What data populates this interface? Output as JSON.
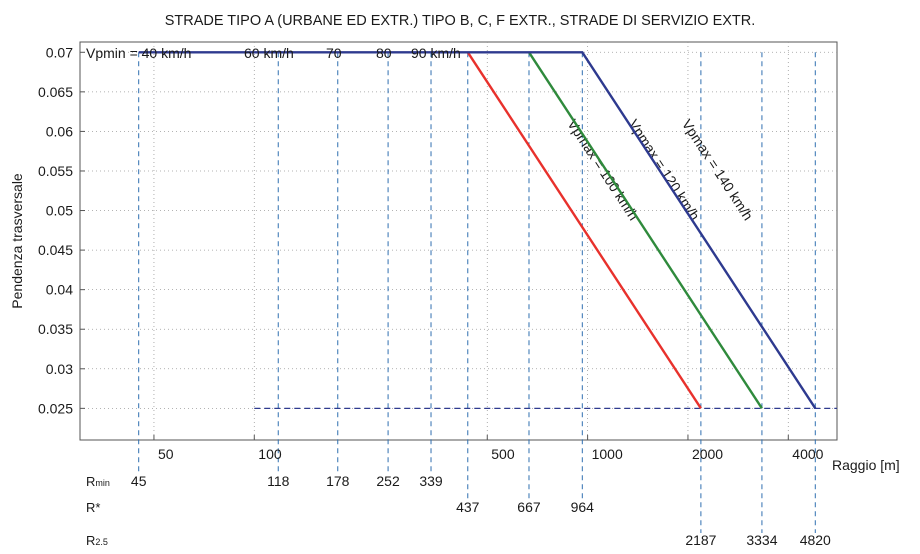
{
  "chart_data": {
    "type": "line",
    "title": "STRADE TIPO A (URBANE ED EXTR.) TIPO B,  C,  F EXTR., STRADE DI SERVIZIO EXTR.",
    "xlabel": "Raggio [m]",
    "ylabel": "Pendenza trasversale",
    "xscale": "log",
    "xlim": [
      30,
      5600
    ],
    "ylim": [
      0.021,
      0.0713
    ],
    "grid": true,
    "x_ticks": [
      50,
      100,
      500,
      1000,
      2000,
      4000
    ],
    "x_tick_labels": [
      "50",
      "100",
      "500",
      "1000",
      "2000",
      "4000"
    ],
    "y_ticks": [
      0.025,
      0.03,
      0.035,
      0.04,
      0.045,
      0.05,
      0.055,
      0.06,
      0.065,
      0.07
    ],
    "y_tick_labels": [
      "0.025",
      "0.03",
      "0.035",
      "0.04",
      "0.045",
      "0.05",
      "0.055",
      "0.06",
      "0.065",
      "0.07"
    ],
    "series": [
      {
        "name": "Vpmax = 100 km/h",
        "color": "#e8312c",
        "x": [
          437,
          2187
        ],
        "y": [
          0.07,
          0.025
        ]
      },
      {
        "name": "Vpmax = 120 km/h",
        "color": "#2f8a3c",
        "x": [
          667,
          3334
        ],
        "y": [
          0.07,
          0.025
        ]
      },
      {
        "name": "Vpmax = 140 km/h",
        "color": "#2e3a8f",
        "x": [
          45,
          964,
          4820
        ],
        "y": [
          0.07,
          0.07,
          0.025
        ]
      }
    ],
    "reference_line": {
      "y": 0.025,
      "x_from": 100,
      "x_to": 5600,
      "style": "dashed",
      "color": "#2e3a8f"
    },
    "vpmin_labels": [
      "Vpmin = 40 km/h",
      "60 km/h",
      "70",
      "80",
      "90 km/h"
    ],
    "rows": [
      {
        "name": "Rmin",
        "name_main": "R",
        "name_sub": "min",
        "values": [
          45,
          118,
          178,
          252,
          339
        ]
      },
      {
        "name": "R*",
        "name_main": "R*",
        "name_sub": "",
        "values": [
          437,
          667,
          964
        ]
      },
      {
        "name": "R2.5",
        "name_main": "R",
        "name_sub": "2.5",
        "values": [
          2187,
          3334,
          4820
        ]
      }
    ]
  }
}
